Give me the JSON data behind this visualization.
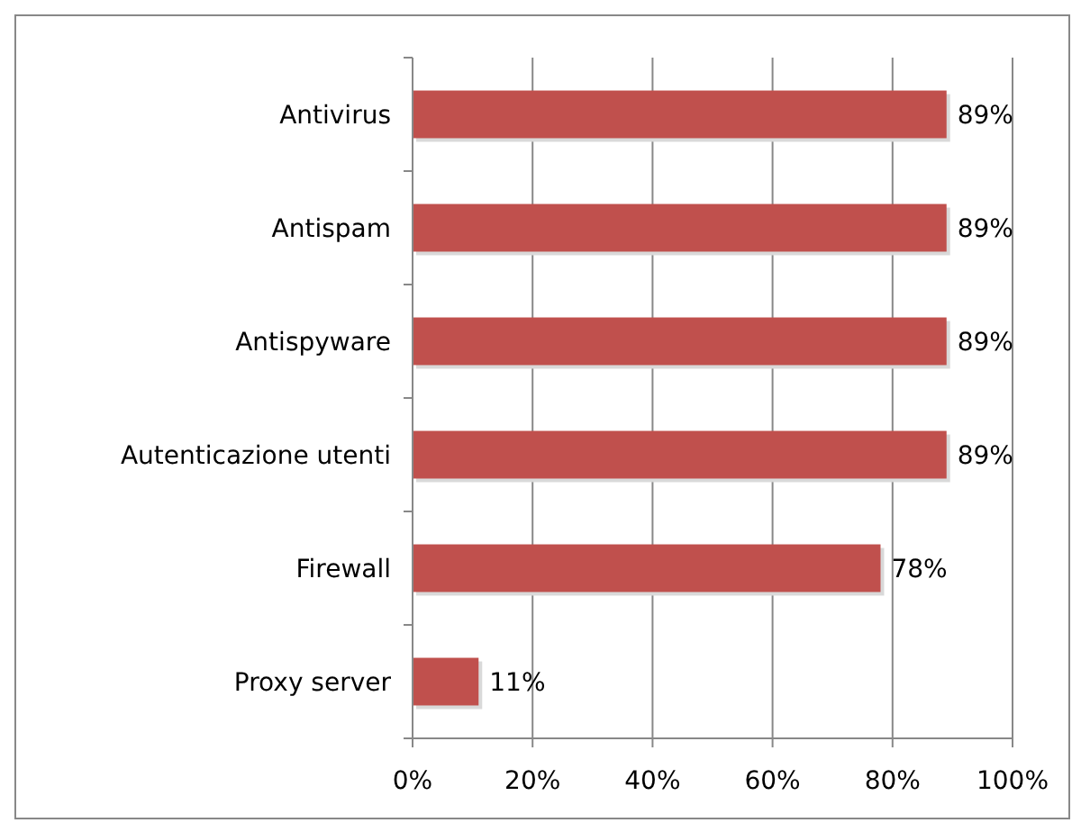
{
  "chart_data": {
    "type": "bar",
    "orientation": "horizontal",
    "categories": [
      "Antivirus",
      "Antispam",
      "Antispyware",
      "Autenticazione utenti",
      "Firewall",
      "Proxy server"
    ],
    "values": [
      89,
      89,
      89,
      89,
      78,
      11
    ],
    "color": "#c0504d",
    "value_labels": [
      "89%",
      "89%",
      "89%",
      "89%",
      "78%",
      "11%"
    ],
    "xlim": [
      0,
      100
    ],
    "xticks": [
      {
        "value": 0,
        "label": "0%"
      },
      {
        "value": 20,
        "label": "20%"
      },
      {
        "value": 40,
        "label": "40%"
      },
      {
        "value": 60,
        "label": "60%"
      },
      {
        "value": 80,
        "label": "80%"
      },
      {
        "value": 100,
        "label": "100%"
      }
    ],
    "grid": "x"
  }
}
